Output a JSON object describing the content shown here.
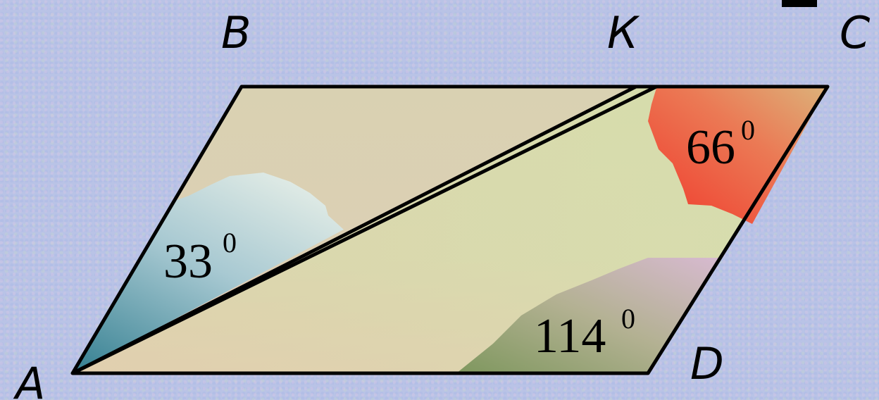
{
  "figure": {
    "vertices": {
      "A": "A",
      "B": "B",
      "K": "К",
      "C": "C",
      "D": "D"
    },
    "angles": [
      {
        "id": "angle-BAK",
        "value": "33",
        "degree": "0"
      },
      {
        "id": "angle-KCD",
        "value": "66",
        "degree": "0"
      },
      {
        "id": "angle-CDA",
        "value": "114",
        "degree": "0"
      }
    ]
  },
  "colors": {
    "background": "#b9c3e6",
    "parallelogram_fill_top": "#dcd4b0",
    "parallelogram_fill_bottom": "#e6c3b6",
    "triangle_KCD_fill": "#d3e9a9",
    "angle33_fill": "#5e99a8",
    "angle66_fill": "#f0503a",
    "angle114_fill": "#8fa26e",
    "stroke": "#000000"
  }
}
